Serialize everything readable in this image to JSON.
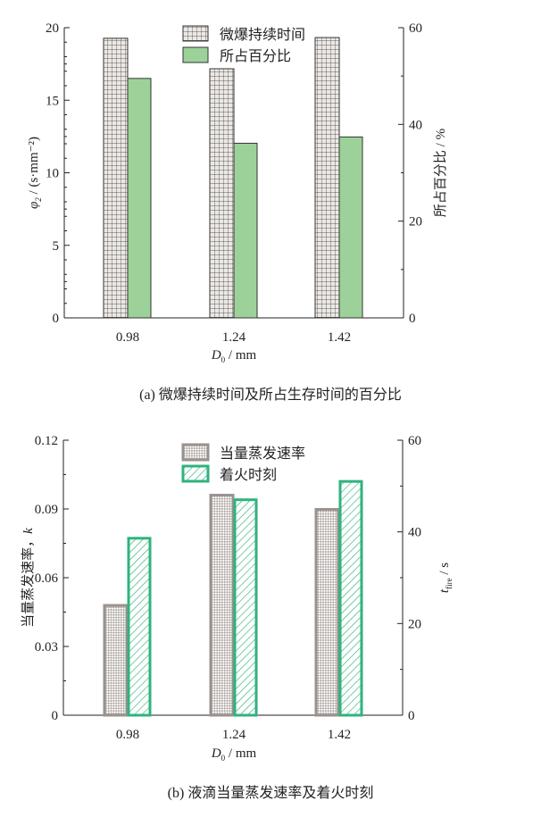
{
  "chart_data": [
    {
      "type": "bar",
      "categories": [
        "0.98",
        "1.24",
        "1.42"
      ],
      "series": [
        {
          "name": "微爆持续时间",
          "axis": "left",
          "values": [
            19.3,
            17.2,
            19.35
          ],
          "color": "#e8e4e0"
        },
        {
          "name": "所占百分比",
          "axis": "right",
          "values": [
            49.6,
            36.2,
            37.5
          ],
          "color": "#9dd19a"
        }
      ],
      "xlabel_main": "D",
      "xlabel_sub": "0",
      "xlabel_unit": " / mm",
      "ylabel_main": "φ",
      "ylabel_sub": "2",
      "ylabel_unit": " / (s·mm⁻²)",
      "y2label": "所占百分比 / %",
      "ylim": [
        0,
        20
      ],
      "yticks": [
        "0",
        "5",
        "10",
        "15",
        "20"
      ],
      "y2lim": [
        0,
        60
      ],
      "y2ticks": [
        "0",
        "20",
        "40",
        "60"
      ],
      "caption": "(a)  微爆持续时间及所占生存时间的百分比"
    },
    {
      "type": "bar",
      "categories": [
        "0.98",
        "1.24",
        "1.42"
      ],
      "series": [
        {
          "name": "当量蒸发速率",
          "axis": "left",
          "values": [
            0.0485,
            0.0966,
            0.0904
          ],
          "color": "#a8a09c"
        },
        {
          "name": "着火时刻",
          "axis": "right",
          "values": [
            38.9,
            47.3,
            51.3
          ],
          "color": "#2fb37c"
        }
      ],
      "xlabel_main": "D",
      "xlabel_sub": "0",
      "xlabel_unit": " / mm",
      "ylabel_main": "当量蒸发速率，",
      "ylabel_sub": "k",
      "ylabel_unit": "",
      "y2label_main": "t",
      "y2label_sub": "fire",
      "y2label_unit": " / s",
      "ylim": [
        0,
        0.12
      ],
      "yticks": [
        "0",
        "0.03",
        "0.06",
        "0.09",
        "0.12"
      ],
      "y2lim": [
        0,
        60
      ],
      "y2ticks": [
        "0",
        "20",
        "40",
        "60"
      ],
      "caption": "(b)  液滴当量蒸发速率及着火时刻"
    }
  ]
}
